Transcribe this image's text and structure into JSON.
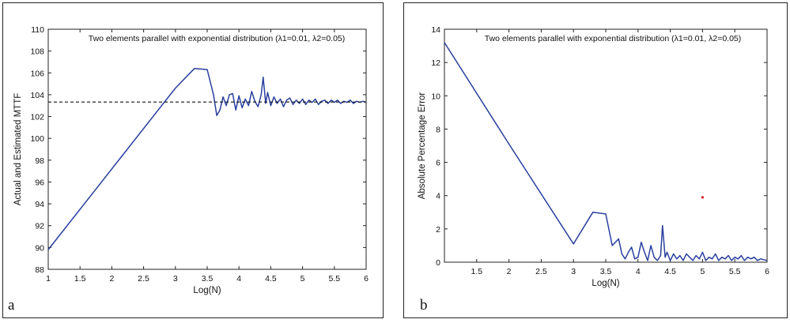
{
  "chart_data": [
    {
      "panel_letter": "a",
      "type": "line",
      "title": "Two elements parallel with exponential distribution (λ1=0.01, λ2=0.05)",
      "xlabel": "Log(N)",
      "ylabel": "Actual and Estimated MTTF",
      "xlim": [
        1,
        6
      ],
      "ylim": [
        88,
        110
      ],
      "xticks": [
        "1",
        "1.5",
        "2",
        "2.5",
        "3",
        "3.5",
        "4",
        "4.5",
        "5",
        "5.5",
        "6"
      ],
      "xtick_values": [
        1,
        1.5,
        2,
        2.5,
        3,
        3.5,
        4,
        4.5,
        5,
        5.5,
        6
      ],
      "yticks": [
        "88",
        "90",
        "92",
        "94",
        "96",
        "98",
        "100",
        "102",
        "104",
        "106",
        "108",
        "110"
      ],
      "ytick_values": [
        88,
        90,
        92,
        94,
        96,
        98,
        100,
        102,
        104,
        106,
        108,
        110
      ],
      "series": [
        {
          "color": "#2a3f9e",
          "style": "solid",
          "x": [
            1.0,
            2.0,
            3.0,
            3.3,
            3.5,
            3.6,
            3.65,
            3.7,
            3.75,
            3.8,
            3.85,
            3.9,
            3.95,
            4.0,
            4.05,
            4.1,
            4.15,
            4.2,
            4.25,
            4.3,
            4.35,
            4.38,
            4.42,
            4.45,
            4.5,
            4.55,
            4.6,
            4.65,
            4.7,
            4.75,
            4.8,
            4.85,
            4.9,
            4.95,
            5.0,
            5.05,
            5.1,
            5.15,
            5.2,
            5.25,
            5.3,
            5.35,
            5.4,
            5.45,
            5.5,
            5.55,
            5.6,
            5.65,
            5.7,
            5.75,
            5.8,
            5.85,
            5.9,
            5.95,
            6.0
          ],
          "y": [
            89.8,
            97.2,
            104.6,
            106.4,
            106.3,
            104.0,
            102.1,
            102.6,
            103.8,
            103.0,
            104.0,
            104.1,
            102.6,
            103.9,
            102.8,
            103.6,
            103.0,
            104.3,
            103.4,
            102.9,
            104.0,
            105.6,
            103.2,
            104.2,
            103.0,
            103.8,
            103.2,
            103.6,
            102.9,
            103.5,
            103.7,
            103.1,
            103.5,
            103.2,
            103.6,
            103.1,
            103.5,
            103.3,
            103.6,
            103.1,
            103.4,
            103.5,
            103.2,
            103.5,
            103.3,
            103.5,
            103.2,
            103.4,
            103.3,
            103.5,
            103.2,
            103.4,
            103.3,
            103.4,
            103.3
          ]
        },
        {
          "color": "#111111",
          "style": "dashed",
          "x": [
            1,
            6
          ],
          "y": [
            103.33,
            103.33
          ]
        }
      ]
    },
    {
      "panel_letter": "b",
      "type": "line",
      "title": "Two elements parallel with exponential distribution (λ1=0.01, λ2=0.05)",
      "xlabel": "Log(N)",
      "ylabel": "Absolute Percentage Error",
      "xlim": [
        1,
        6
      ],
      "ylim": [
        0,
        14
      ],
      "xticks": [
        "1.5",
        "2",
        "2.5",
        "3",
        "3.5",
        "4",
        "4.5",
        "5",
        "5.5",
        "6"
      ],
      "xtick_values": [
        1.5,
        2,
        2.5,
        3,
        3.5,
        4,
        4.5,
        5,
        5.5,
        6
      ],
      "yticks": [
        "0",
        "2",
        "4",
        "6",
        "8",
        "10",
        "12",
        "14"
      ],
      "ytick_values": [
        0,
        2,
        4,
        6,
        8,
        10,
        12,
        14
      ],
      "series": [
        {
          "color": "#2a3f9e",
          "style": "solid",
          "x": [
            1.0,
            2.0,
            3.0,
            3.3,
            3.5,
            3.6,
            3.65,
            3.7,
            3.75,
            3.8,
            3.85,
            3.9,
            3.95,
            4.0,
            4.05,
            4.1,
            4.15,
            4.2,
            4.25,
            4.3,
            4.35,
            4.38,
            4.42,
            4.45,
            4.5,
            4.55,
            4.6,
            4.65,
            4.7,
            4.75,
            4.8,
            4.85,
            4.9,
            4.95,
            5.0,
            5.05,
            5.1,
            5.15,
            5.2,
            5.25,
            5.3,
            5.35,
            5.4,
            5.45,
            5.5,
            5.55,
            5.6,
            5.65,
            5.7,
            5.75,
            5.8,
            5.85,
            5.9,
            5.95,
            6.0
          ],
          "y": [
            13.2,
            7.1,
            1.1,
            3.0,
            2.9,
            1.0,
            1.2,
            1.4,
            0.5,
            0.2,
            0.6,
            0.9,
            0.2,
            0.3,
            1.2,
            0.6,
            0.1,
            1.0,
            0.3,
            0.1,
            0.4,
            2.2,
            0.3,
            0.6,
            0.1,
            0.5,
            0.2,
            0.4,
            0.1,
            0.5,
            0.3,
            0.1,
            0.4,
            0.2,
            0.6,
            0.1,
            0.3,
            0.2,
            0.5,
            0.1,
            0.3,
            0.2,
            0.4,
            0.1,
            0.3,
            0.2,
            0.4,
            0.1,
            0.3,
            0.2,
            0.3,
            0.1,
            0.2,
            0.15,
            0.1
          ]
        },
        {
          "color": "#d62020",
          "style": "marker",
          "x": [
            5.0
          ],
          "y": [
            3.9
          ]
        }
      ]
    }
  ]
}
